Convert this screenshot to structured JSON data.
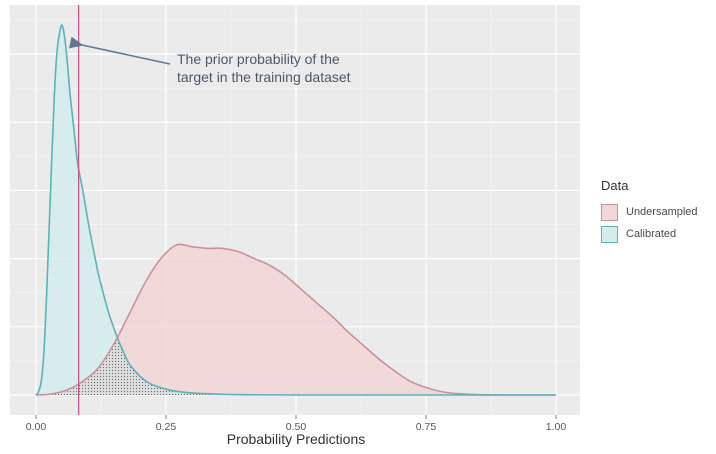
{
  "chart_data": {
    "type": "area",
    "title": "",
    "xlabel": "Probability Predictions",
    "ylabel": "",
    "xlim": [
      0,
      1
    ],
    "ylim": [
      0,
      11
    ],
    "x_ticks": [
      "0.00",
      "0.25",
      "0.50",
      "0.75",
      "1.00"
    ],
    "grid": true,
    "legend": {
      "title": "Data",
      "placement": "right"
    },
    "series": [
      {
        "name": "Undersampled",
        "color_fill": "#f3d6d6",
        "color_line": "#c9929e",
        "x": [
          0.0,
          0.03,
          0.06,
          0.09,
          0.12,
          0.15,
          0.18,
          0.21,
          0.24,
          0.27,
          0.3,
          0.33,
          0.36,
          0.39,
          0.42,
          0.45,
          0.48,
          0.51,
          0.54,
          0.57,
          0.6,
          0.63,
          0.66,
          0.69,
          0.72,
          0.75,
          0.78,
          0.81,
          0.85,
          0.9,
          1.0
        ],
        "y": [
          0.0,
          0.03,
          0.15,
          0.4,
          0.8,
          1.5,
          2.4,
          3.3,
          4.0,
          4.4,
          4.35,
          4.3,
          4.3,
          4.2,
          4.0,
          3.8,
          3.5,
          3.1,
          2.7,
          2.3,
          1.85,
          1.45,
          1.05,
          0.7,
          0.4,
          0.22,
          0.1,
          0.04,
          0.01,
          0.0,
          0.0
        ]
      },
      {
        "name": "Calibrated",
        "color_fill": "#d3ecec",
        "color_line": "#5ab3b8",
        "x": [
          0.0,
          0.005,
          0.01,
          0.015,
          0.02,
          0.025,
          0.03,
          0.035,
          0.04,
          0.045,
          0.05,
          0.055,
          0.06,
          0.065,
          0.07,
          0.075,
          0.08,
          0.09,
          0.1,
          0.11,
          0.12,
          0.13,
          0.14,
          0.15,
          0.16,
          0.17,
          0.18,
          0.2,
          0.22,
          0.25,
          0.28,
          0.32,
          0.36,
          0.4,
          0.5,
          0.7,
          1.0
        ],
        "y": [
          0.0,
          0.1,
          0.4,
          1.2,
          2.8,
          4.8,
          6.8,
          8.7,
          10.0,
          10.6,
          10.85,
          10.5,
          9.8,
          8.9,
          8.2,
          7.5,
          6.8,
          6.0,
          5.1,
          4.3,
          3.55,
          2.95,
          2.4,
          1.95,
          1.55,
          1.2,
          0.9,
          0.55,
          0.33,
          0.17,
          0.09,
          0.04,
          0.02,
          0.01,
          0.0,
          0.0,
          0.0
        ]
      }
    ],
    "reference_line": {
      "x": 0.082,
      "color": "#c4588a"
    },
    "annotation": {
      "line1": "The prior probability of the",
      "line2": "target in the training dataset"
    },
    "colors": {
      "panel": "#ebebeb",
      "grid": "#ffffff",
      "arrow": "#5f7a8f",
      "overlap_dots": "#6a6a6a"
    }
  }
}
